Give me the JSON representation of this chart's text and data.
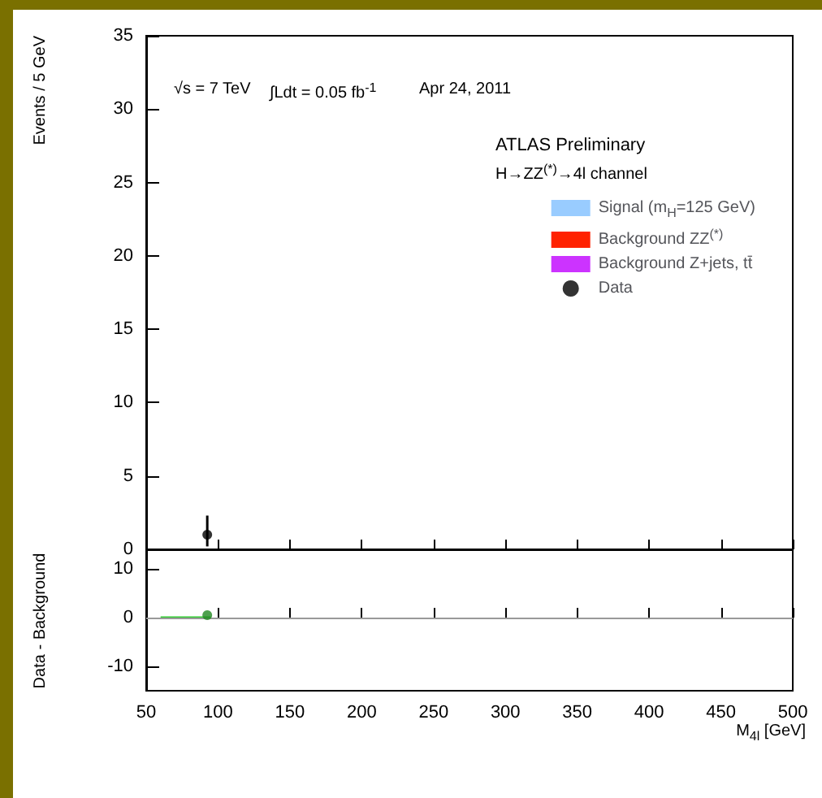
{
  "chart_data": [
    {
      "type": "scatter",
      "ylabel": "Events / 5 GeV",
      "xlim": [
        50,
        500
      ],
      "xticks": [
        50,
        100,
        150,
        200,
        250,
        300,
        350,
        400,
        450,
        500
      ],
      "ylim": [
        0,
        35
      ],
      "yticks": [
        0,
        5,
        10,
        15,
        20,
        25,
        30,
        35
      ],
      "tick_labels": "y",
      "grid": false,
      "legend": "top right",
      "marker": "circle",
      "annotations": [
        "√s = 7 TeV",
        "∫Ldt = 0.05 fb$^{-1}$",
        "Apr 24, 2011",
        "ATLAS Preliminary",
        "H→ZZ$^{(*)}$→4l channel"
      ],
      "series": [
        {
          "name": "Signal (m$_{H}$=125 GeV)",
          "type": "bar",
          "color": "#99ccff"
        },
        {
          "name": "Background ZZ$^{(*)}$",
          "type": "bar",
          "color": "#ff2200"
        },
        {
          "name": "Background Z+jets, tt̄",
          "type": "bar",
          "color": "#cc33ff"
        },
        {
          "name": "Data",
          "color": "#000000",
          "x": [
            92.5
          ],
          "values": [
            1
          ],
          "errors": [
            [
              0.2,
              2.3
            ]
          ]
        }
      ]
    },
    {
      "type": "scatter",
      "ylabel": "Data - Background",
      "xlabel": "M$_{4l}$ [GeV]",
      "xlim": [
        50,
        500
      ],
      "xticks": [
        50,
        100,
        150,
        200,
        250,
        300,
        350,
        400,
        450,
        500
      ],
      "ylim": [
        -15,
        14
      ],
      "yticks": [
        -10,
        0,
        10
      ],
      "grid": false,
      "ref_lines": [
        {
          "axis": "y",
          "value": 0,
          "color": "#999999"
        }
      ],
      "series": [
        {
          "color": "#228822",
          "x": [
            92.5
          ],
          "values": [
            0.5
          ]
        },
        {
          "type": "line",
          "color": "#33cc33",
          "x": [
            60,
            95
          ],
          "values": [
            0,
            0
          ]
        }
      ]
    }
  ]
}
